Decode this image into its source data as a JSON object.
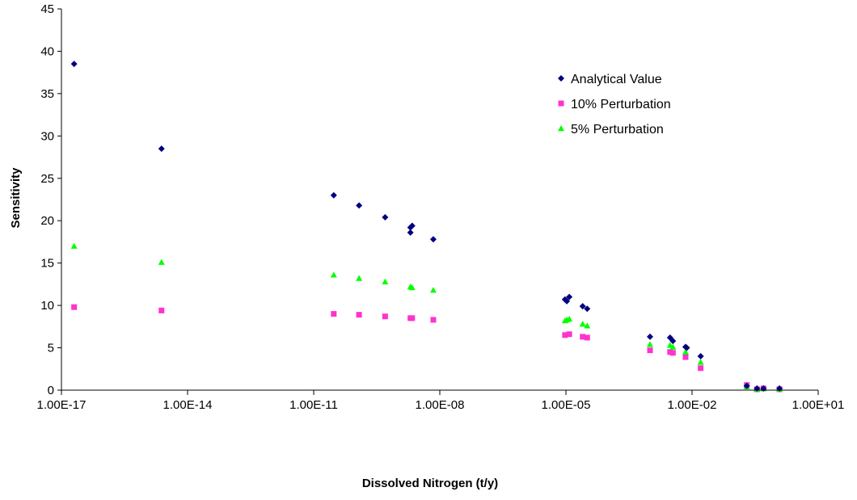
{
  "chart_data": {
    "type": "scatter",
    "title": "",
    "xlabel": "Dissolved Nitrogen (t/y)",
    "ylabel": "Sensitivity",
    "x_scale": "log",
    "xlim": [
      1e-17,
      10
    ],
    "ylim": [
      0,
      45
    ],
    "x_ticks": [
      1e-17,
      1e-14,
      1e-11,
      1e-08,
      1e-05,
      0.01,
      10
    ],
    "x_tick_labels": [
      "1.00E-17",
      "1.00E-14",
      "1.00E-11",
      "1.00E-08",
      "1.00E-05",
      "1.00E-02",
      "1.00E+01"
    ],
    "y_ticks": [
      0,
      5,
      10,
      15,
      20,
      25,
      30,
      35,
      40,
      45
    ],
    "y_tick_labels": [
      "0",
      "5",
      "10",
      "15",
      "20",
      "25",
      "30",
      "35",
      "40",
      "45"
    ],
    "grid": false,
    "legend_position": "top-right",
    "series": [
      {
        "name": "Analytical Value",
        "color": "#000080",
        "marker": "diamond",
        "points": [
          [
            2e-17,
            38.5
          ],
          [
            2.4e-15,
            28.5
          ],
          [
            3e-11,
            23.0
          ],
          [
            1.2e-10,
            21.8
          ],
          [
            5e-10,
            20.4
          ],
          [
            2e-09,
            19.2
          ],
          [
            2.2e-09,
            19.4
          ],
          [
            2e-09,
            18.6
          ],
          [
            7e-09,
            17.8
          ],
          [
            9.5e-06,
            10.7
          ],
          [
            1.05e-05,
            10.5
          ],
          [
            1.2e-05,
            11.0
          ],
          [
            2.5e-05,
            9.9
          ],
          [
            3.2e-05,
            9.6
          ],
          [
            0.001,
            6.3
          ],
          [
            0.003,
            6.2
          ],
          [
            0.0035,
            5.8
          ],
          [
            0.007,
            5.1
          ],
          [
            0.0075,
            5.0
          ],
          [
            0.016,
            4.0
          ],
          [
            0.2,
            0.5
          ],
          [
            0.35,
            0.2
          ],
          [
            0.5,
            0.2
          ],
          [
            1.2,
            0.2
          ]
        ]
      },
      {
        "name": "10% Perturbation",
        "color": "#FF33CC",
        "marker": "square",
        "points": [
          [
            2e-17,
            9.8
          ],
          [
            2.4e-15,
            9.4
          ],
          [
            3e-11,
            9.0
          ],
          [
            1.2e-10,
            8.9
          ],
          [
            5e-10,
            8.7
          ],
          [
            2e-09,
            8.5
          ],
          [
            2.2e-09,
            8.5
          ],
          [
            7e-09,
            8.3
          ],
          [
            9.5e-06,
            6.5
          ],
          [
            1.2e-05,
            6.6
          ],
          [
            2.5e-05,
            6.3
          ],
          [
            3.2e-05,
            6.2
          ],
          [
            0.001,
            4.7
          ],
          [
            0.003,
            4.5
          ],
          [
            0.0035,
            4.4
          ],
          [
            0.007,
            3.9
          ],
          [
            0.016,
            2.6
          ],
          [
            0.2,
            0.6
          ],
          [
            0.35,
            0.1
          ],
          [
            0.5,
            0.2
          ],
          [
            1.2,
            0.1
          ]
        ]
      },
      {
        "name": "5% Perturbation",
        "color": "#00FF00",
        "marker": "triangle",
        "points": [
          [
            2e-17,
            17.0
          ],
          [
            2.4e-15,
            15.1
          ],
          [
            3e-11,
            13.6
          ],
          [
            1.2e-10,
            13.2
          ],
          [
            5e-10,
            12.8
          ],
          [
            2e-09,
            12.2
          ],
          [
            2.2e-09,
            12.1
          ],
          [
            7e-09,
            11.8
          ],
          [
            9.5e-06,
            8.2
          ],
          [
            1.05e-05,
            8.3
          ],
          [
            1.2e-05,
            8.4
          ],
          [
            2.5e-05,
            7.8
          ],
          [
            3.2e-05,
            7.6
          ],
          [
            0.001,
            5.4
          ],
          [
            0.003,
            5.3
          ],
          [
            0.0035,
            5.1
          ],
          [
            0.007,
            4.5
          ],
          [
            0.016,
            3.3
          ],
          [
            0.2,
            0.4
          ],
          [
            0.35,
            0.1
          ],
          [
            0.5,
            0.2
          ],
          [
            1.2,
            0.1
          ]
        ]
      }
    ]
  }
}
